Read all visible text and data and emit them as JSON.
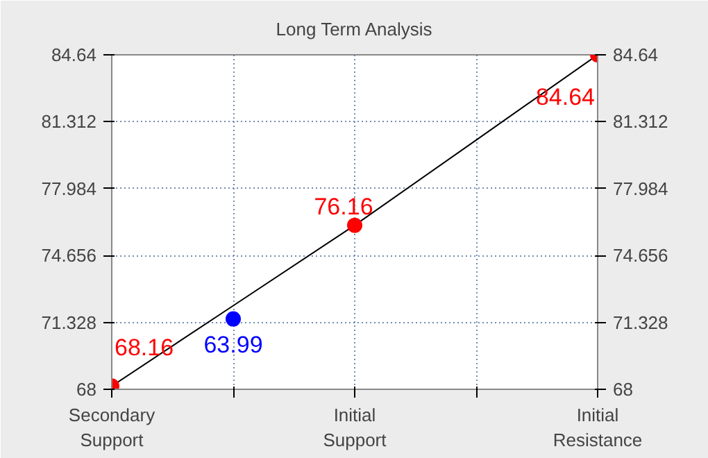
{
  "chart_data": {
    "type": "line",
    "title": "Long Term Analysis",
    "categories": [
      "Secondary\nSupport",
      null,
      "Initial\nSupport",
      null,
      "Initial\nResistance"
    ],
    "ylim": [
      68,
      84.64
    ],
    "yticks": [
      68,
      71.328,
      74.656,
      77.984,
      81.312,
      84.64
    ],
    "y2lim": [
      68,
      84.64
    ],
    "y2ticks": [
      68,
      71.328,
      74.656,
      77.984,
      81.312,
      84.64
    ],
    "grid": true,
    "legend": false,
    "series": [
      {
        "color": "#000000",
        "values": [
          68.16,
          72.16,
          76.16,
          80.4,
          84.64
        ],
        "marker": "none"
      },
      {
        "type": "scatter",
        "color": "#ff0000",
        "values": [
          68.16,
          null,
          76.16,
          null,
          84.64
        ],
        "marker": "circle",
        "value_labels": [
          "68.16",
          null,
          "76.16",
          null,
          "84.64"
        ]
      },
      {
        "type": "scatter",
        "color": "#0000ff",
        "values": [
          null,
          71.5,
          null,
          null,
          null
        ],
        "marker": "circle"
      }
    ],
    "annotations": [
      {
        "text": "63.99",
        "y": 71.5
      }
    ]
  }
}
